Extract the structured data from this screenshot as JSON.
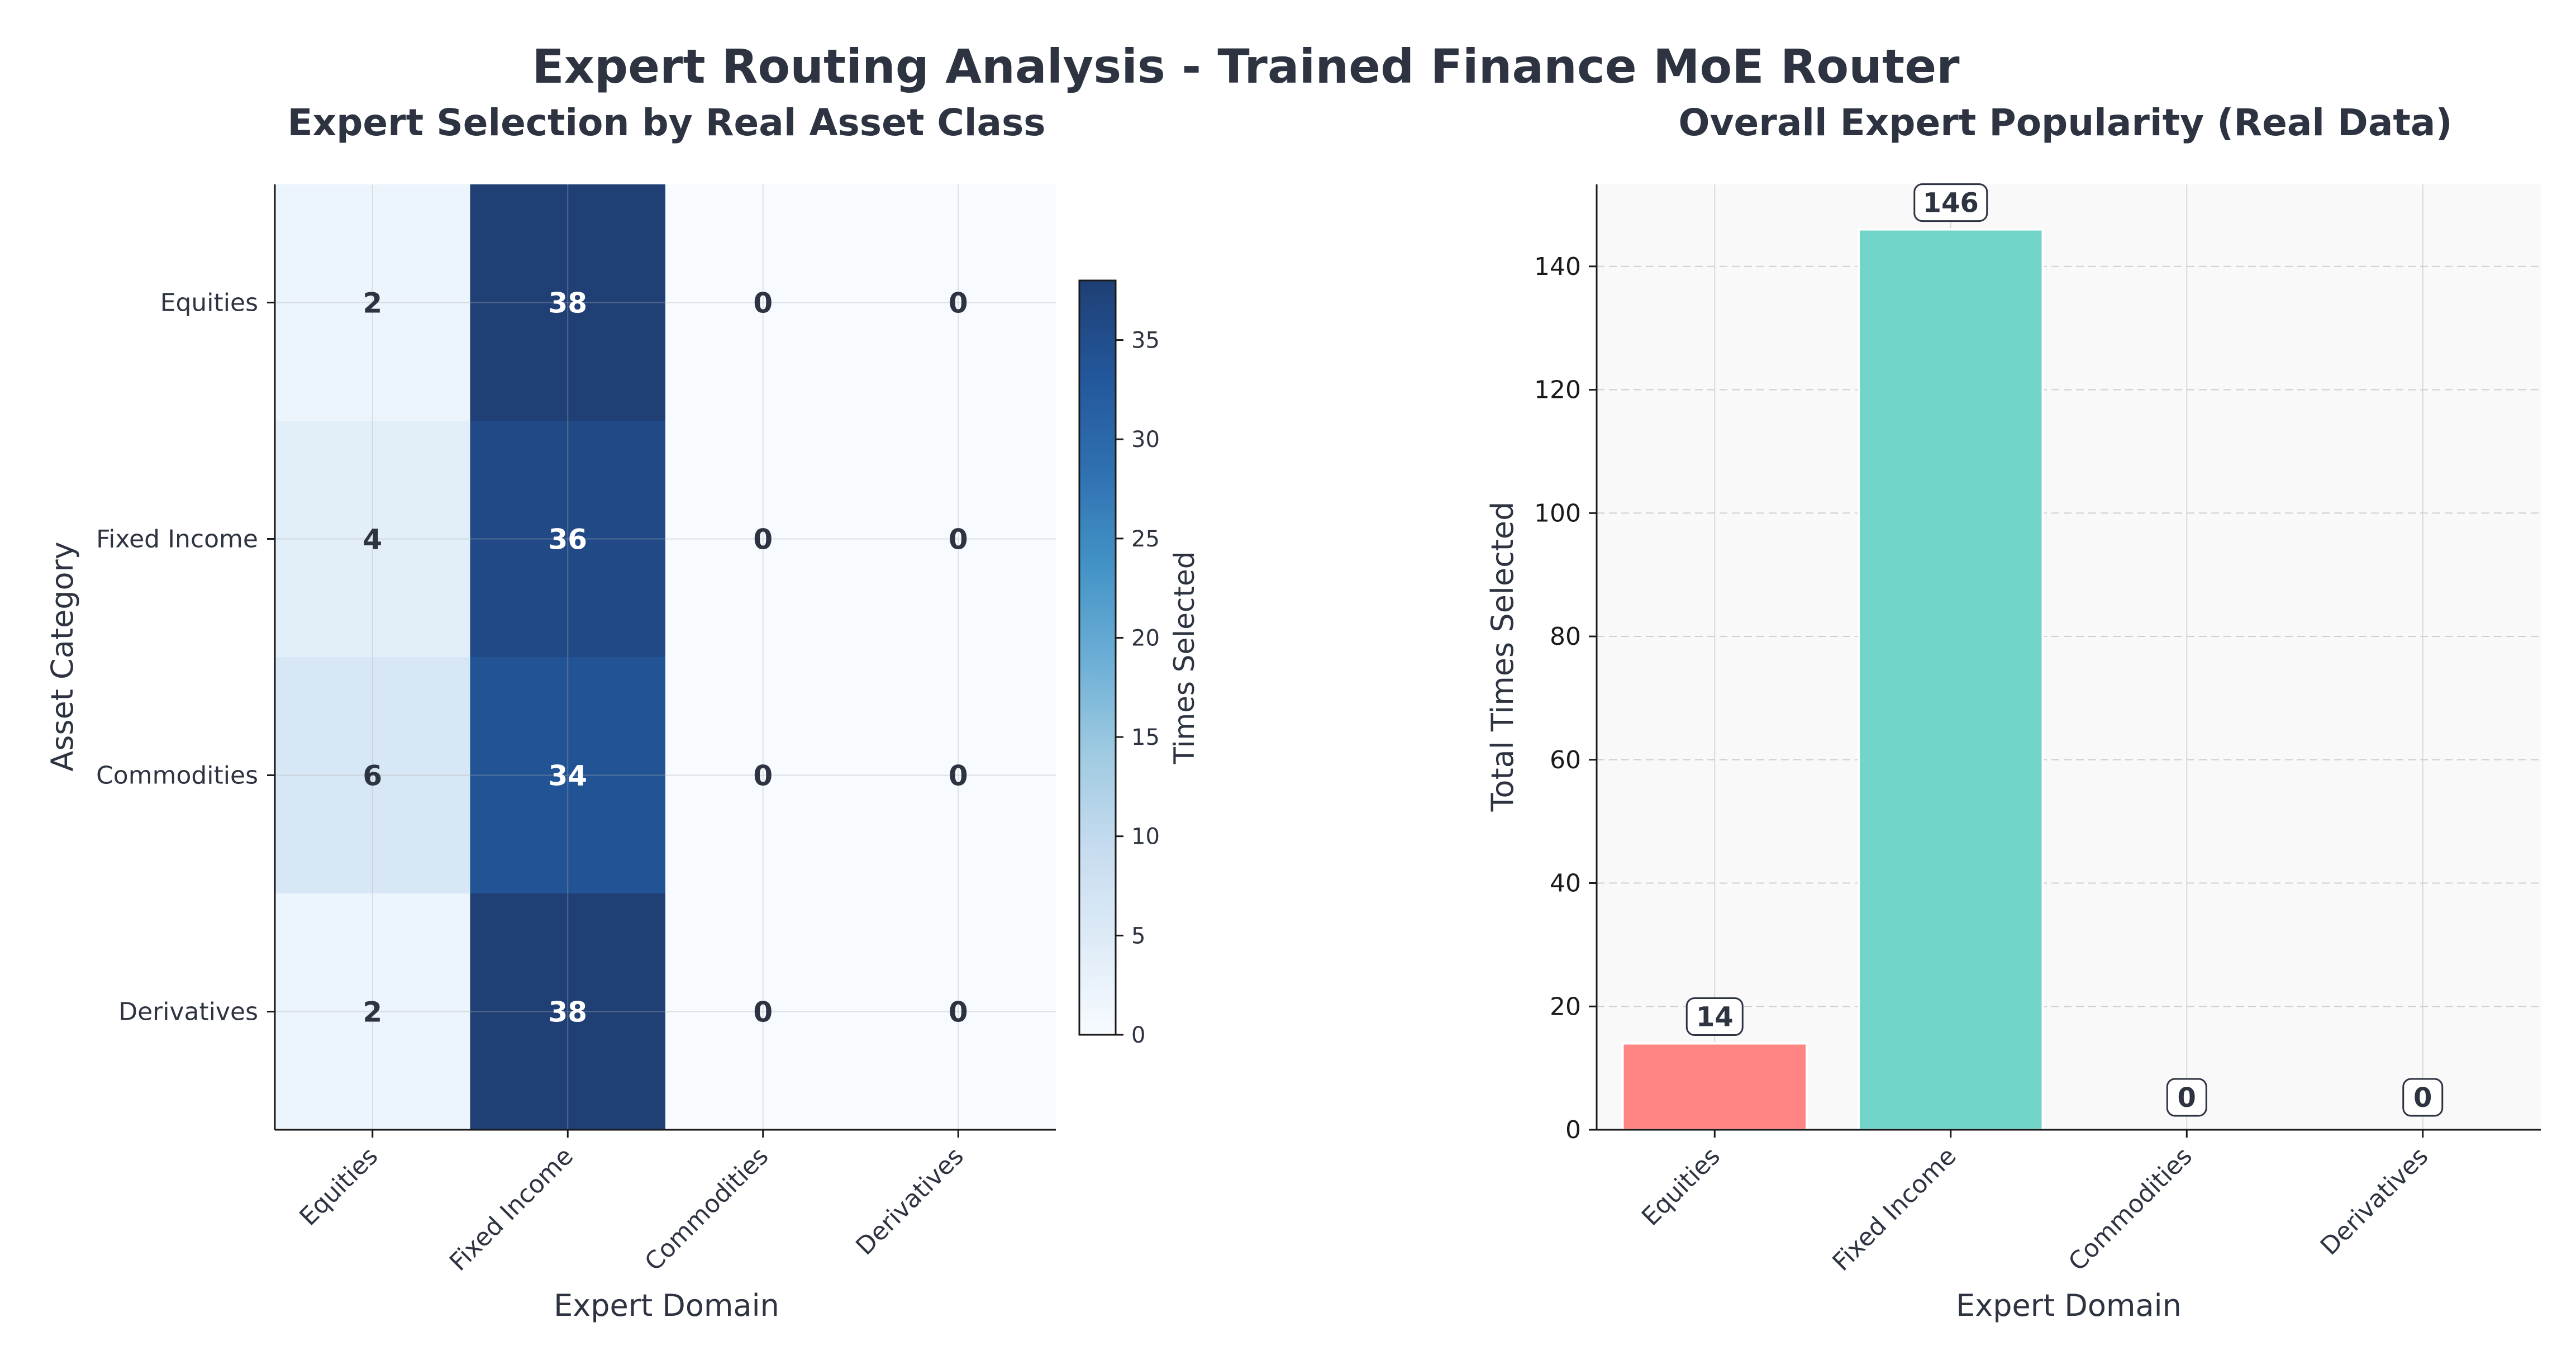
{
  "figure": {
    "title": "Expert Routing Analysis - Trained Finance MoE Router",
    "title_color": "#2d3340"
  },
  "chart_data": [
    {
      "type": "heatmap",
      "title": "Expert Selection by Real Asset Class",
      "xlabel": "Expert Domain",
      "ylabel": "Asset Category",
      "x_categories": [
        "Equities",
        "Fixed Income",
        "Commodities",
        "Derivatives"
      ],
      "y_categories": [
        "Equities",
        "Fixed Income",
        "Commodities",
        "Derivatives"
      ],
      "values": [
        [
          2,
          38,
          0,
          0
        ],
        [
          4,
          36,
          0,
          0
        ],
        [
          6,
          34,
          0,
          0
        ],
        [
          2,
          38,
          0,
          0
        ]
      ],
      "colorbar": {
        "label": "Times Selected",
        "range": [
          0,
          38
        ],
        "ticks": [
          0,
          5,
          10,
          15,
          20,
          25,
          30,
          35
        ],
        "colormap": "Blues"
      },
      "grid": true
    },
    {
      "type": "bar",
      "title": "Overall Expert Popularity (Real Data)",
      "xlabel": "Expert Domain",
      "ylabel": "Total Times Selected",
      "categories": [
        "Equities",
        "Fixed Income",
        "Commodities",
        "Derivatives"
      ],
      "values": [
        14,
        146,
        0,
        0
      ],
      "colors": [
        "#ff8585",
        "#72d5c9",
        "#45b7d1",
        "#96ceb4"
      ],
      "ylim": [
        0,
        153.3
      ],
      "yticks": [
        0,
        20,
        40,
        60,
        80,
        100,
        120,
        140
      ],
      "grid": true,
      "grid_style": "dashed-horizontal",
      "data_labels": true
    }
  ]
}
